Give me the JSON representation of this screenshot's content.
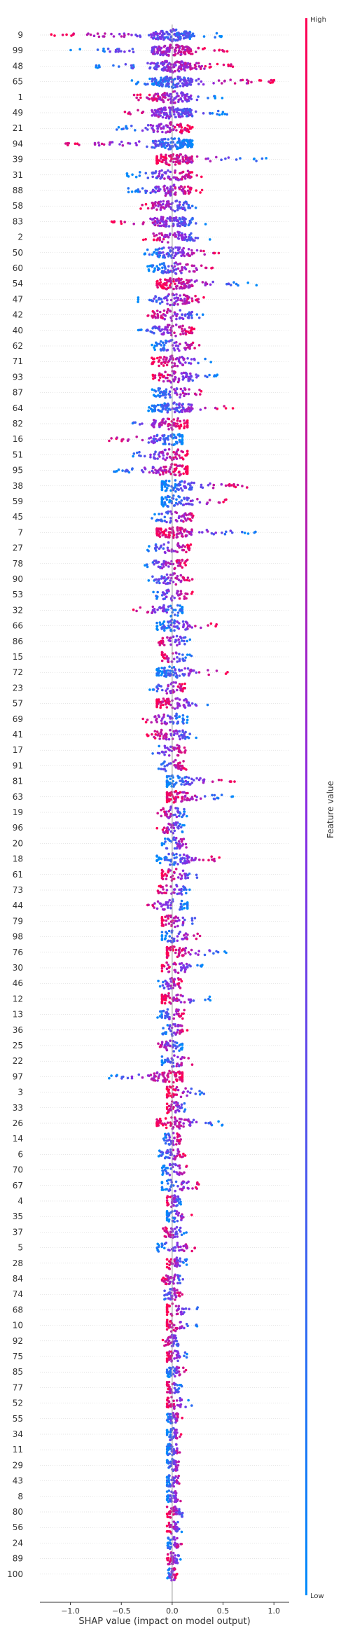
{
  "chart_data": {
    "type": "scatter",
    "subtype": "shap-beeswarm",
    "xlabel": "SHAP value (impact on model output)",
    "ylabel": "",
    "xlim": [
      -1.3,
      1.15
    ],
    "x_ticks": [
      -1.0,
      -0.5,
      0.0,
      0.5,
      1.0
    ],
    "x_tick_labels": [
      "−1.0",
      "−0.5",
      "0.0",
      "0.5",
      "1.0"
    ],
    "grid": false,
    "colorbar": {
      "label": "Feature value",
      "high_label": "High",
      "low_label": "Low",
      "colors": [
        "#008bfb",
        "#8a2be2",
        "#ff0052"
      ]
    },
    "features": [
      {
        "name": "9",
        "min": -1.2,
        "max": 0.5,
        "low_side": "right"
      },
      {
        "name": "99",
        "min": -1.0,
        "max": 0.55,
        "low_side": "left"
      },
      {
        "name": "48",
        "min": -0.75,
        "max": 0.6,
        "low_side": "left"
      },
      {
        "name": "65",
        "min": -0.4,
        "max": 1.05,
        "low_side": "left"
      },
      {
        "name": "1",
        "min": -0.4,
        "max": 0.55,
        "low_side": "right"
      },
      {
        "name": "49",
        "min": -0.65,
        "max": 0.55,
        "low_side": "right"
      },
      {
        "name": "21",
        "min": -0.55,
        "max": 0.2,
        "low_side": "left"
      },
      {
        "name": "94",
        "min": -1.1,
        "max": 0.2,
        "low_side": "right"
      },
      {
        "name": "39",
        "min": -0.15,
        "max": 0.95,
        "low_side": "right"
      },
      {
        "name": "31",
        "min": -0.45,
        "max": 0.3,
        "low_side": "left"
      },
      {
        "name": "88",
        "min": -0.45,
        "max": 0.3,
        "low_side": "left"
      },
      {
        "name": "58",
        "min": -0.35,
        "max": 0.35,
        "low_side": "right"
      },
      {
        "name": "83",
        "min": -0.6,
        "max": 0.45,
        "low_side": "right"
      },
      {
        "name": "2",
        "min": -0.3,
        "max": 0.4,
        "low_side": "right"
      },
      {
        "name": "50",
        "min": -0.3,
        "max": 0.5,
        "low_side": "left"
      },
      {
        "name": "60",
        "min": -0.25,
        "max": 0.4,
        "low_side": "left"
      },
      {
        "name": "54",
        "min": -0.15,
        "max": 0.85,
        "low_side": "right"
      },
      {
        "name": "47",
        "min": -0.35,
        "max": 0.35,
        "low_side": "left"
      },
      {
        "name": "42",
        "min": -0.25,
        "max": 0.35,
        "low_side": "right"
      },
      {
        "name": "40",
        "min": -0.4,
        "max": 0.25,
        "low_side": "left"
      },
      {
        "name": "62",
        "min": -0.2,
        "max": 0.3,
        "low_side": "left"
      },
      {
        "name": "71",
        "min": -0.2,
        "max": 0.4,
        "low_side": "right"
      },
      {
        "name": "93",
        "min": -0.2,
        "max": 0.45,
        "low_side": "right"
      },
      {
        "name": "87",
        "min": -0.2,
        "max": 0.3,
        "low_side": "left"
      },
      {
        "name": "64",
        "min": -0.25,
        "max": 0.6,
        "low_side": "left"
      },
      {
        "name": "82",
        "min": -0.5,
        "max": 0.15,
        "low_side": "left"
      },
      {
        "name": "16",
        "min": -0.65,
        "max": 0.1,
        "low_side": "right"
      },
      {
        "name": "51",
        "min": -0.4,
        "max": 0.15,
        "low_side": "left"
      },
      {
        "name": "95",
        "min": -0.6,
        "max": 0.15,
        "low_side": "left"
      },
      {
        "name": "38",
        "min": -0.1,
        "max": 0.75,
        "low_side": "left"
      },
      {
        "name": "59",
        "min": -0.1,
        "max": 0.55,
        "low_side": "left"
      },
      {
        "name": "45",
        "min": -0.2,
        "max": 0.25,
        "low_side": "left"
      },
      {
        "name": "7",
        "min": -0.15,
        "max": 0.85,
        "low_side": "right"
      },
      {
        "name": "27",
        "min": -0.25,
        "max": 0.2,
        "low_side": "left"
      },
      {
        "name": "78",
        "min": -0.3,
        "max": 0.15,
        "low_side": "left"
      },
      {
        "name": "90",
        "min": -0.25,
        "max": 0.2,
        "low_side": "left"
      },
      {
        "name": "53",
        "min": -0.2,
        "max": 0.2,
        "low_side": "left"
      },
      {
        "name": "32",
        "min": -0.4,
        "max": 0.1,
        "low_side": "right"
      },
      {
        "name": "66",
        "min": -0.15,
        "max": 0.45,
        "low_side": "left"
      },
      {
        "name": "86",
        "min": -0.15,
        "max": 0.2,
        "low_side": "right"
      },
      {
        "name": "15",
        "min": -0.1,
        "max": 0.2,
        "low_side": "right"
      },
      {
        "name": "72",
        "min": -0.15,
        "max": 0.55,
        "low_side": "left"
      },
      {
        "name": "23",
        "min": -0.25,
        "max": 0.15,
        "low_side": "left"
      },
      {
        "name": "57",
        "min": -0.15,
        "max": 0.45,
        "low_side": "right"
      },
      {
        "name": "69",
        "min": -0.3,
        "max": 0.15,
        "low_side": "right"
      },
      {
        "name": "41",
        "min": -0.25,
        "max": 0.3,
        "low_side": "right"
      },
      {
        "name": "17",
        "min": -0.2,
        "max": 0.15,
        "low_side": "left"
      },
      {
        "name": "91",
        "min": -0.15,
        "max": 0.15,
        "low_side": "left"
      },
      {
        "name": "81",
        "min": -0.05,
        "max": 0.65,
        "low_side": "left"
      },
      {
        "name": "63",
        "min": -0.05,
        "max": 0.6,
        "low_side": "right"
      },
      {
        "name": "19",
        "min": -0.15,
        "max": 0.15,
        "low_side": "right"
      },
      {
        "name": "96",
        "min": -0.15,
        "max": 0.15,
        "low_side": "right"
      },
      {
        "name": "20",
        "min": -0.1,
        "max": 0.2,
        "low_side": "left"
      },
      {
        "name": "18",
        "min": -0.15,
        "max": 0.5,
        "low_side": "left"
      },
      {
        "name": "61",
        "min": -0.1,
        "max": 0.3,
        "low_side": "right"
      },
      {
        "name": "73",
        "min": -0.15,
        "max": 0.2,
        "low_side": "right"
      },
      {
        "name": "44",
        "min": -0.3,
        "max": 0.15,
        "low_side": "right"
      },
      {
        "name": "79",
        "min": -0.1,
        "max": 0.3,
        "low_side": "right"
      },
      {
        "name": "98",
        "min": -0.1,
        "max": 0.3,
        "low_side": "left"
      },
      {
        "name": "76",
        "min": -0.05,
        "max": 0.55,
        "low_side": "right"
      },
      {
        "name": "30",
        "min": -0.1,
        "max": 0.3,
        "low_side": "right"
      },
      {
        "name": "46",
        "min": -0.15,
        "max": 0.1,
        "low_side": "left"
      },
      {
        "name": "12",
        "min": -0.1,
        "max": 0.4,
        "low_side": "right"
      },
      {
        "name": "13",
        "min": -0.15,
        "max": 0.15,
        "low_side": "left"
      },
      {
        "name": "36",
        "min": -0.1,
        "max": 0.15,
        "low_side": "left"
      },
      {
        "name": "25",
        "min": -0.2,
        "max": 0.1,
        "low_side": "right"
      },
      {
        "name": "22",
        "min": -0.1,
        "max": 0.2,
        "low_side": "left"
      },
      {
        "name": "97",
        "min": -0.65,
        "max": 0.1,
        "low_side": "left"
      },
      {
        "name": "3",
        "min": -0.05,
        "max": 0.35,
        "low_side": "right"
      },
      {
        "name": "33",
        "min": -0.05,
        "max": 0.15,
        "low_side": "right"
      },
      {
        "name": "26",
        "min": -0.15,
        "max": 0.5,
        "low_side": "right"
      },
      {
        "name": "14",
        "min": -0.1,
        "max": 0.1,
        "low_side": "left"
      },
      {
        "name": "6",
        "min": -0.15,
        "max": 0.15,
        "low_side": "left"
      },
      {
        "name": "70",
        "min": -0.1,
        "max": 0.15,
        "low_side": "left"
      },
      {
        "name": "67",
        "min": -0.1,
        "max": 0.3,
        "low_side": "left"
      },
      {
        "name": "4",
        "min": -0.05,
        "max": 0.1,
        "low_side": "right"
      },
      {
        "name": "35",
        "min": -0.05,
        "max": 0.2,
        "low_side": "left"
      },
      {
        "name": "37",
        "min": -0.1,
        "max": 0.15,
        "low_side": "right"
      },
      {
        "name": "5",
        "min": -0.15,
        "max": 0.25,
        "low_side": "left"
      },
      {
        "name": "28",
        "min": -0.05,
        "max": 0.15,
        "low_side": "right"
      },
      {
        "name": "84",
        "min": -0.1,
        "max": 0.15,
        "low_side": "right"
      },
      {
        "name": "74",
        "min": -0.1,
        "max": 0.1,
        "low_side": "left"
      },
      {
        "name": "68",
        "min": -0.05,
        "max": 0.25,
        "low_side": "right"
      },
      {
        "name": "10",
        "min": -0.05,
        "max": 0.25,
        "low_side": "right"
      },
      {
        "name": "92",
        "min": -0.1,
        "max": 0.1,
        "low_side": "right"
      },
      {
        "name": "75",
        "min": -0.05,
        "max": 0.15,
        "low_side": "right"
      },
      {
        "name": "85",
        "min": -0.05,
        "max": 0.15,
        "low_side": "left"
      },
      {
        "name": "77",
        "min": -0.05,
        "max": 0.1,
        "low_side": "right"
      },
      {
        "name": "52",
        "min": -0.05,
        "max": 0.2,
        "low_side": "right"
      },
      {
        "name": "55",
        "min": -0.05,
        "max": 0.1,
        "low_side": "left"
      },
      {
        "name": "34",
        "min": -0.05,
        "max": 0.1,
        "low_side": "left"
      },
      {
        "name": "11",
        "min": -0.05,
        "max": 0.1,
        "low_side": "left"
      },
      {
        "name": "29",
        "min": -0.05,
        "max": 0.1,
        "low_side": "left"
      },
      {
        "name": "43",
        "min": -0.05,
        "max": 0.1,
        "low_side": "left"
      },
      {
        "name": "8",
        "min": -0.05,
        "max": 0.1,
        "low_side": "left"
      },
      {
        "name": "80",
        "min": -0.05,
        "max": 0.15,
        "low_side": "right"
      },
      {
        "name": "56",
        "min": -0.05,
        "max": 0.1,
        "low_side": "right"
      },
      {
        "name": "24",
        "min": -0.05,
        "max": 0.1,
        "low_side": "left"
      },
      {
        "name": "89",
        "min": -0.05,
        "max": 0.1,
        "low_side": "right"
      },
      {
        "name": "100",
        "min": -0.05,
        "max": 0.05,
        "low_side": "left"
      }
    ]
  }
}
